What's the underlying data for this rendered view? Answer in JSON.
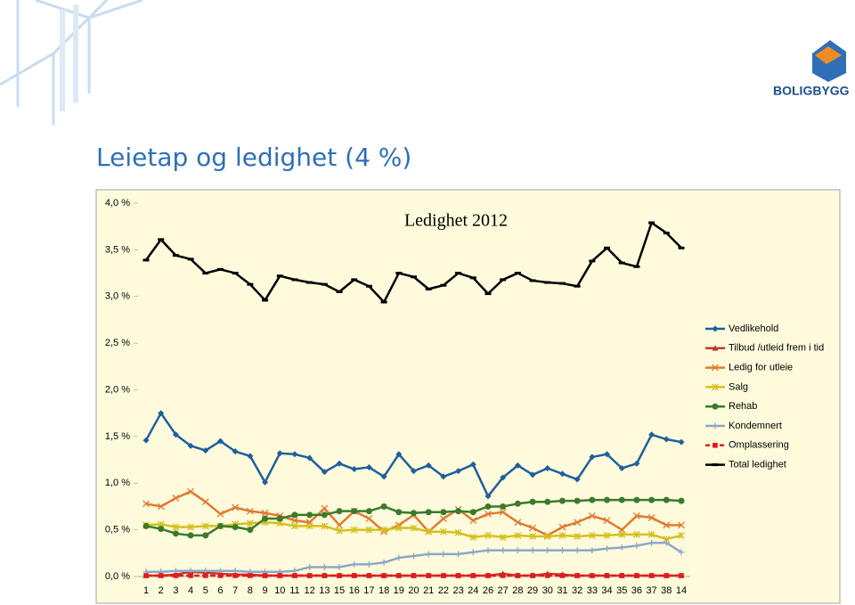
{
  "title": "Leietap og ledighet (4 %)",
  "logo": "BOLIGBYGG",
  "chart_data": {
    "type": "line",
    "title": "Ledighet 2012",
    "categories": [
      "1",
      "2",
      "3",
      "4",
      "5",
      "6",
      "7",
      "8",
      "9",
      "10",
      "11",
      "12",
      "13",
      "15",
      "16",
      "17",
      "18",
      "19",
      "20",
      "21",
      "22",
      "23",
      "24",
      "26",
      "27",
      "28",
      "29",
      "30",
      "31",
      "32",
      "33",
      "34",
      "35",
      "36",
      "37",
      "38",
      "14"
    ],
    "ylim": [
      0,
      4
    ],
    "yticks": [
      {
        "value": 0,
        "label": "0,0 %"
      },
      {
        "value": 0.5,
        "label": "0,5 %"
      },
      {
        "value": 1,
        "label": "1,0 %"
      },
      {
        "value": 1.5,
        "label": "1,5 %"
      },
      {
        "value": 2,
        "label": "2,0 %"
      },
      {
        "value": 2.5,
        "label": "2,5 %"
      },
      {
        "value": 3,
        "label": "3,0 %"
      },
      {
        "value": 3.5,
        "label": "3,5 %"
      },
      {
        "value": 4,
        "label": "4,0 %"
      }
    ],
    "legend": "right",
    "series": [
      {
        "name": "Vedlikehold",
        "color": "#1f5f9e",
        "marker": "diamond",
        "values": [
          1.46,
          1.75,
          1.52,
          1.4,
          1.35,
          1.45,
          1.34,
          1.29,
          1.01,
          1.32,
          1.31,
          1.27,
          1.12,
          1.21,
          1.15,
          1.17,
          1.07,
          1.31,
          1.13,
          1.19,
          1.07,
          1.13,
          1.2,
          0.86,
          1.06,
          1.19,
          1.09,
          1.16,
          1.1,
          1.04,
          1.28,
          1.31,
          1.16,
          1.21,
          1.52,
          1.47,
          1.44
        ]
      },
      {
        "name": "Tilbud /utleid frem i tid",
        "color": "#c0392b",
        "marker": "triangle",
        "values": [
          0.01,
          0.01,
          0.02,
          0.05,
          0.04,
          0.03,
          0.02,
          0.02,
          0.01,
          0.01,
          0.01,
          0.01,
          0.01,
          0.01,
          0.01,
          0.01,
          0.01,
          0.01,
          0.01,
          0.01,
          0.01,
          0.01,
          0.01,
          0.01,
          0.03,
          0.01,
          0.01,
          0.03,
          0.02,
          0.01,
          0.01,
          0.01,
          0.01,
          0.01,
          0.01,
          0.01,
          0.01
        ]
      },
      {
        "name": "Ledig for utleie",
        "color": "#e07a30",
        "marker": "x",
        "values": [
          0.78,
          0.75,
          0.84,
          0.91,
          0.8,
          0.67,
          0.74,
          0.7,
          0.68,
          0.65,
          0.6,
          0.58,
          0.73,
          0.55,
          0.7,
          0.62,
          0.48,
          0.55,
          0.66,
          0.48,
          0.62,
          0.72,
          0.6,
          0.67,
          0.69,
          0.58,
          0.52,
          0.44,
          0.53,
          0.58,
          0.65,
          0.6,
          0.5,
          0.65,
          0.63,
          0.55,
          0.55
        ]
      },
      {
        "name": "Salg",
        "color": "#d4c020",
        "marker": "star",
        "values": [
          0.55,
          0.56,
          0.53,
          0.53,
          0.54,
          0.54,
          0.56,
          0.57,
          0.58,
          0.57,
          0.54,
          0.54,
          0.54,
          0.49,
          0.5,
          0.5,
          0.5,
          0.52,
          0.52,
          0.48,
          0.48,
          0.47,
          0.42,
          0.44,
          0.42,
          0.44,
          0.43,
          0.43,
          0.44,
          0.43,
          0.44,
          0.44,
          0.45,
          0.45,
          0.45,
          0.4,
          0.44
        ]
      },
      {
        "name": "Rehab",
        "color": "#3b7a2a",
        "marker": "circle",
        "values": [
          0.54,
          0.51,
          0.46,
          0.44,
          0.44,
          0.54,
          0.53,
          0.5,
          0.62,
          0.62,
          0.66,
          0.66,
          0.66,
          0.7,
          0.7,
          0.7,
          0.75,
          0.69,
          0.68,
          0.69,
          0.69,
          0.7,
          0.69,
          0.75,
          0.75,
          0.78,
          0.8,
          0.8,
          0.81,
          0.81,
          0.82,
          0.82,
          0.82,
          0.82,
          0.82,
          0.82,
          0.81
        ]
      },
      {
        "name": "Kondemnert",
        "color": "#8fa6c8",
        "marker": "plus",
        "values": [
          0.05,
          0.05,
          0.06,
          0.06,
          0.06,
          0.06,
          0.06,
          0.05,
          0.05,
          0.05,
          0.06,
          0.1,
          0.1,
          0.1,
          0.13,
          0.13,
          0.15,
          0.2,
          0.22,
          0.24,
          0.24,
          0.24,
          0.26,
          0.28,
          0.28,
          0.28,
          0.28,
          0.28,
          0.28,
          0.28,
          0.28,
          0.3,
          0.31,
          0.33,
          0.36,
          0.36,
          0.26
        ]
      },
      {
        "name": "Omplassering",
        "color": "#e31a1c",
        "marker": "square",
        "dash": true,
        "values": [
          0.01,
          0.01,
          0.01,
          0.01,
          0.01,
          0.01,
          0.01,
          0.01,
          0.01,
          0.01,
          0.01,
          0.01,
          0.01,
          0.01,
          0.01,
          0.01,
          0.01,
          0.01,
          0.01,
          0.01,
          0.01,
          0.01,
          0.01,
          0.01,
          0.01,
          0.01,
          0.01,
          0.01,
          0.01,
          0.01,
          0.01,
          0.01,
          0.01,
          0.01,
          0.01,
          0.01,
          0.01
        ]
      },
      {
        "name": "Total ledighet",
        "color": "#000000",
        "marker": "dash",
        "values": [
          3.39,
          3.61,
          3.44,
          3.4,
          3.25,
          3.29,
          3.25,
          3.13,
          2.96,
          3.22,
          3.18,
          3.15,
          3.13,
          3.05,
          3.18,
          3.11,
          2.94,
          3.25,
          3.21,
          3.08,
          3.12,
          3.25,
          3.2,
          3.03,
          3.18,
          3.25,
          3.17,
          3.15,
          3.14,
          3.11,
          3.38,
          3.52,
          3.36,
          3.32,
          3.79,
          3.68,
          3.52
        ]
      }
    ]
  }
}
